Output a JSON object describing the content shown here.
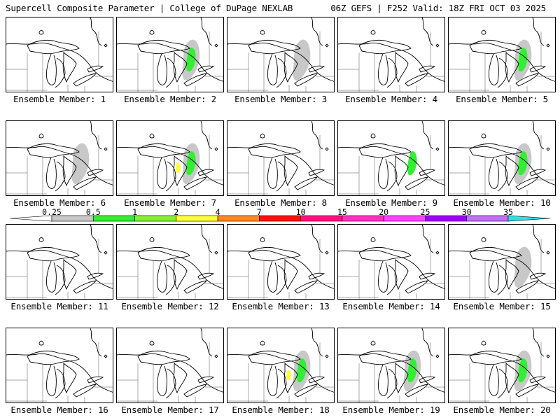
{
  "header": {
    "left": "Supercell Composite Parameter | College of DuPage NEXLAB",
    "right": "06Z GEFS | F252 Valid: 18Z FRI OCT 03 2025"
  },
  "colorbar": {
    "labels": [
      "0.25",
      "0.5",
      "1",
      "2",
      "4",
      "7",
      "10",
      "15",
      "20",
      "25",
      "30",
      "35"
    ],
    "colors": [
      "#c8c8c8",
      "#33ee33",
      "#88ee33",
      "#ffff33",
      "#ff8820",
      "#ff1010",
      "#ff1080",
      "#ff30c0",
      "#ff40ff",
      "#a000ff",
      "#c070f0",
      "#30e0e0"
    ]
  },
  "members": [
    {
      "label": "Ensemble Member: 1",
      "fill": []
    },
    {
      "label": "Ensemble Member: 2",
      "fill": [
        "gray",
        "green"
      ]
    },
    {
      "label": "Ensemble Member: 3",
      "fill": [
        "gray"
      ]
    },
    {
      "label": "Ensemble Member: 4",
      "fill": []
    },
    {
      "label": "Ensemble Member: 5",
      "fill": [
        "gray",
        "green"
      ]
    },
    {
      "label": "Ensemble Member: 6",
      "fill": [
        "gray"
      ]
    },
    {
      "label": "Ensemble Member: 7",
      "fill": [
        "gray",
        "green",
        "yellow"
      ]
    },
    {
      "label": "Ensemble Member: 8",
      "fill": []
    },
    {
      "label": "Ensemble Member: 9",
      "fill": [
        "green"
      ]
    },
    {
      "label": "Ensemble Member: 10",
      "fill": [
        "gray",
        "green"
      ]
    },
    {
      "label": "Ensemble Member: 11",
      "fill": []
    },
    {
      "label": "Ensemble Member: 12",
      "fill": []
    },
    {
      "label": "Ensemble Member: 13",
      "fill": []
    },
    {
      "label": "Ensemble Member: 14",
      "fill": []
    },
    {
      "label": "Ensemble Member: 15",
      "fill": [
        "gray"
      ]
    },
    {
      "label": "Ensemble Member: 16",
      "fill": []
    },
    {
      "label": "Ensemble Member: 17",
      "fill": []
    },
    {
      "label": "Ensemble Member: 18",
      "fill": [
        "gray",
        "green",
        "yellow"
      ]
    },
    {
      "label": "Ensemble Member: 19",
      "fill": [
        "gray",
        "green"
      ]
    },
    {
      "label": "Ensemble Member: 20",
      "fill": [
        "gray",
        "green"
      ]
    }
  ]
}
